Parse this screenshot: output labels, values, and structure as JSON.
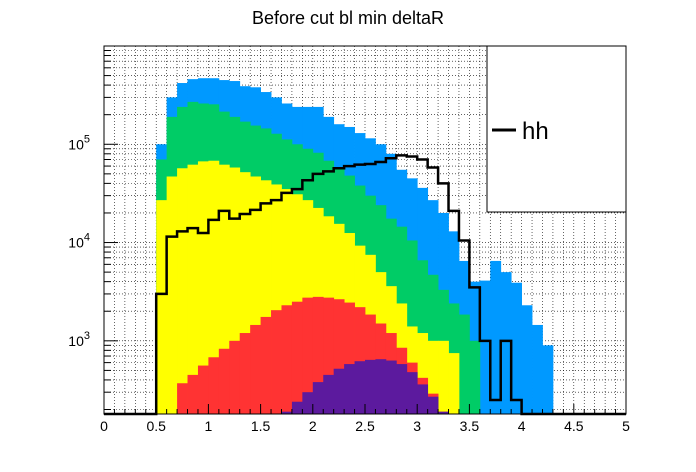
{
  "chart_data": {
    "type": "area",
    "title": "Before cut bl min deltaR",
    "xlabel": "",
    "ylabel": "",
    "xlim": [
      0,
      5
    ],
    "ylim": [
      180,
      1000000
    ],
    "y_scale": "log",
    "grid": true,
    "bin_width": 0.1,
    "bin_edges_start": 0,
    "x_ticks": [
      "0",
      "0.5",
      "1",
      "1.5",
      "2",
      "2.5",
      "3",
      "3.5",
      "4",
      "4.5",
      "5"
    ],
    "x_tick_values": [
      0,
      0.5,
      1,
      1.5,
      2,
      2.5,
      3,
      3.5,
      4,
      4.5,
      5
    ],
    "y_ticks": [
      {
        "value": 1000,
        "base": "10",
        "exp": "3"
      },
      {
        "value": 10000,
        "base": "10",
        "exp": "4"
      },
      {
        "value": 100000,
        "base": "10",
        "exp": "5"
      }
    ],
    "legend_placement": "top-right",
    "stack": [
      {
        "color": "#5c1a9e",
        "values": [
          0,
          0,
          0,
          0,
          0,
          0,
          0,
          0,
          0,
          0,
          0,
          0,
          0,
          0,
          0,
          0,
          0,
          0,
          0,
          0,
          0,
          0,
          0,
          0,
          0,
          0,
          0,
          0,
          0,
          0,
          0,
          0,
          0,
          0,
          0,
          0,
          0,
          0,
          0,
          0,
          0,
          0,
          0,
          0,
          0,
          0,
          0,
          0,
          0,
          0
        ]
      },
      {
        "color": "#ff3333",
        "values": [
          0,
          0,
          0,
          0,
          0,
          0,
          0,
          0,
          0,
          0,
          0,
          0,
          0,
          0,
          0,
          0,
          0,
          0,
          0,
          0,
          0,
          0,
          0,
          0,
          0,
          0,
          0,
          0,
          0,
          0,
          0,
          0,
          0,
          0,
          0,
          0,
          0,
          0,
          0,
          0,
          0,
          0,
          0,
          0,
          0,
          0,
          0,
          0,
          0,
          0
        ]
      },
      {
        "color": "#ffff00",
        "values": [
          0,
          0,
          0,
          0,
          0,
          0,
          0,
          0,
          0,
          0,
          0,
          0,
          0,
          0,
          0,
          0,
          0,
          0,
          0,
          0,
          0,
          0,
          0,
          0,
          0,
          0,
          0,
          0,
          0,
          0,
          0,
          0,
          0,
          0,
          0,
          0,
          0,
          0,
          0,
          0,
          0,
          0,
          0,
          0,
          0,
          0,
          0,
          0,
          0,
          0
        ]
      },
      {
        "color": "#00cc66",
        "values": [
          0,
          0,
          0,
          0,
          0,
          0,
          0,
          0,
          0,
          0,
          0,
          0,
          0,
          0,
          0,
          0,
          0,
          0,
          0,
          0,
          0,
          0,
          0,
          0,
          0,
          0,
          0,
          0,
          0,
          0,
          0,
          0,
          0,
          0,
          0,
          0,
          0,
          0,
          0,
          0,
          0,
          0,
          0,
          0,
          0,
          0,
          0,
          0,
          0,
          0
        ]
      },
      {
        "color": "#0099ff",
        "values": [
          0,
          0,
          0,
          0,
          0,
          0,
          0,
          0,
          0,
          0,
          0,
          0,
          0,
          0,
          0,
          0,
          0,
          0,
          0,
          0,
          0,
          0,
          0,
          0,
          0,
          0,
          0,
          0,
          0,
          0,
          0,
          0,
          0,
          0,
          0,
          0,
          0,
          0,
          0,
          0,
          0,
          0,
          0,
          0,
          0,
          0,
          0,
          0,
          0,
          0
        ]
      }
    ],
    "cumulative": [
      {
        "color": "#5c1a9e",
        "values": [
          0,
          0,
          0,
          0,
          0,
          0,
          0,
          0,
          0,
          0,
          0,
          0,
          0,
          0,
          0,
          0,
          0,
          190,
          240,
          300,
          380,
          450,
          520,
          580,
          620,
          640,
          650,
          630,
          580,
          480,
          360,
          270,
          190,
          0,
          0,
          0,
          0,
          0,
          0,
          0,
          0,
          0,
          0,
          0,
          0,
          0,
          0,
          0,
          0,
          0
        ]
      },
      {
        "color": "#ff3333",
        "values": [
          0,
          0,
          0,
          0,
          0,
          0,
          0,
          370,
          450,
          560,
          680,
          830,
          1000,
          1200,
          1450,
          1750,
          2050,
          2300,
          2500,
          2750,
          2800,
          2750,
          2650,
          2450,
          2200,
          1850,
          1500,
          1200,
          850,
          600,
          420,
          290,
          190,
          0,
          0,
          0,
          0,
          0,
          0,
          0,
          0,
          0,
          0,
          0,
          0,
          0,
          0,
          0,
          0,
          0
        ]
      },
      {
        "color": "#ffff00",
        "values": [
          0,
          0,
          0,
          0,
          0,
          27000,
          47000,
          57000,
          62000,
          67000,
          68000,
          62000,
          58000,
          52000,
          47000,
          43000,
          39000,
          35000,
          31000,
          27000,
          22500,
          18500,
          15500,
          12500,
          9300,
          7500,
          5000,
          3600,
          2400,
          1400,
          1200,
          1000,
          1000,
          750,
          0,
          0,
          0,
          0,
          0,
          0,
          0,
          0,
          0,
          0,
          0,
          0,
          0,
          0,
          0,
          0
        ]
      },
      {
        "color": "#00cc66",
        "values": [
          0,
          0,
          0,
          0,
          0,
          70000,
          190000,
          240000,
          270000,
          260000,
          255000,
          215000,
          190000,
          170000,
          155000,
          145000,
          128000,
          112000,
          100000,
          90000,
          82000,
          68000,
          57000,
          48000,
          38000,
          30000,
          24000,
          17500,
          14500,
          10500,
          6600,
          4700,
          3300,
          2400,
          1850,
          1000,
          0,
          0,
          0,
          0,
          0,
          0,
          0,
          0,
          0,
          0,
          0,
          0,
          0,
          0
        ]
      },
      {
        "color": "#0099ff",
        "values": [
          0,
          0,
          0,
          0,
          0,
          100000,
          300000,
          420000,
          460000,
          470000,
          470000,
          450000,
          440000,
          390000,
          380000,
          340000,
          300000,
          260000,
          240000,
          240000,
          240000,
          190000,
          160000,
          150000,
          130000,
          115000,
          100000,
          80000,
          55000,
          45000,
          36000,
          27000,
          20000,
          13000,
          6500,
          4000,
          4100,
          6500,
          5000,
          3900,
          2300,
          1450,
          900,
          0,
          0,
          0,
          0,
          0,
          0,
          0
        ]
      }
    ],
    "line_series": {
      "name": "hh",
      "color": "#000000",
      "values": [
        180,
        180,
        180,
        180,
        180,
        3000,
        11500,
        13000,
        14000,
        12500,
        17000,
        21000,
        17500,
        19500,
        21500,
        25000,
        27000,
        32000,
        35000,
        43000,
        50000,
        53000,
        57000,
        60000,
        62000,
        63000,
        66000,
        72000,
        77000,
        75000,
        70000,
        58000,
        40000,
        21000,
        10500,
        3500,
        1000,
        250,
        1000,
        250,
        180,
        180,
        180,
        180,
        180,
        180,
        180,
        180,
        180,
        180
      ]
    }
  }
}
